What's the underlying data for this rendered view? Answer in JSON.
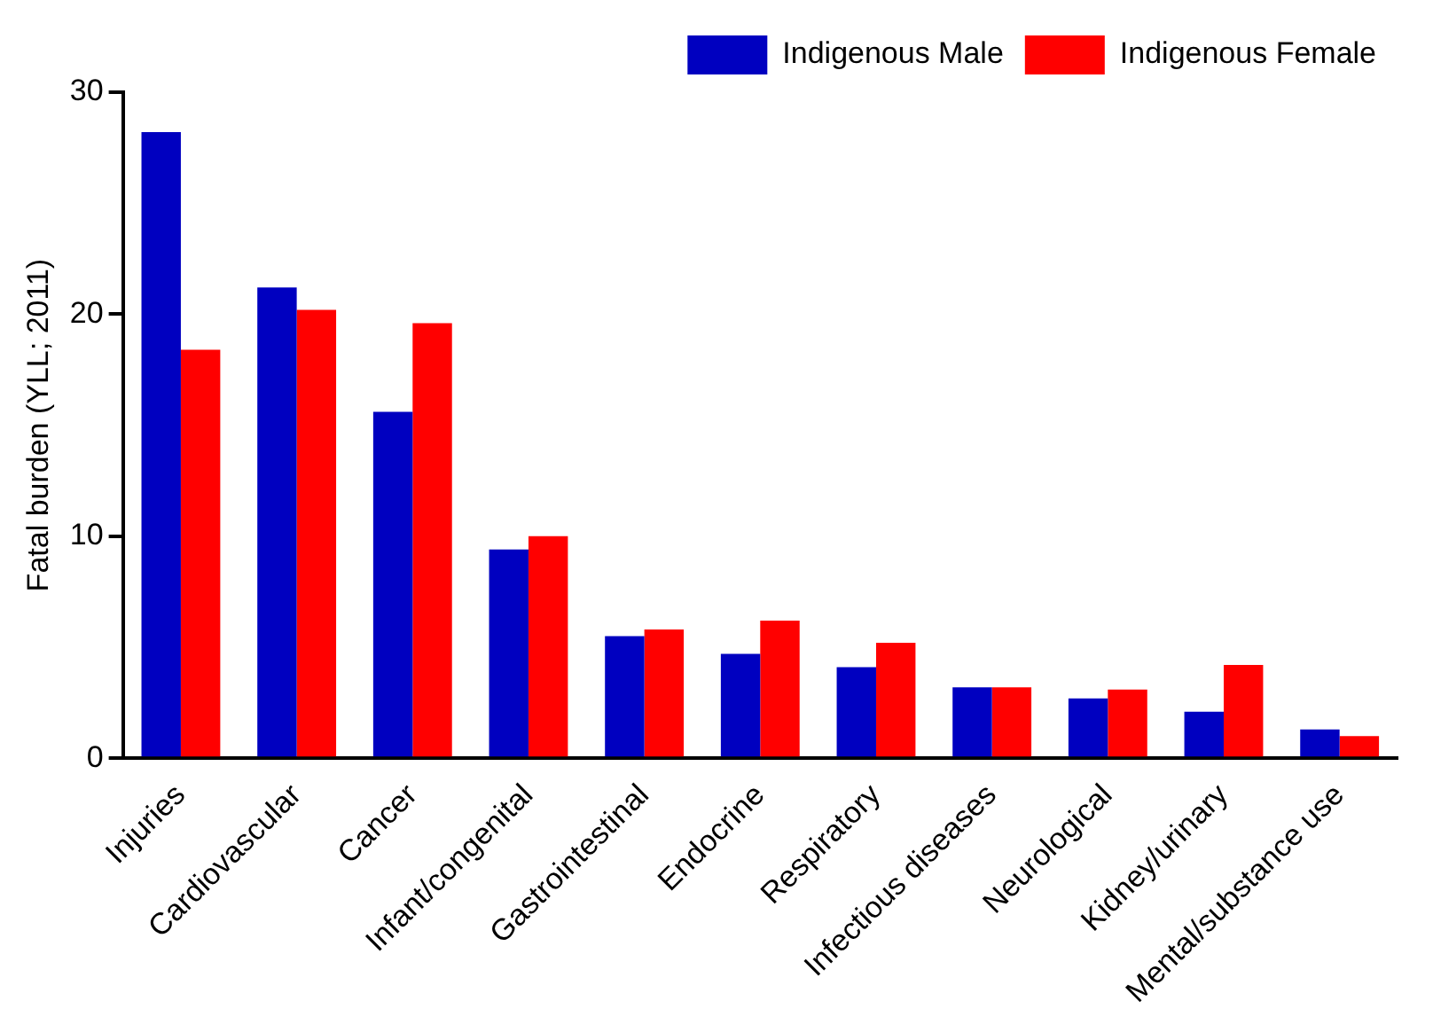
{
  "chart_data": {
    "type": "bar",
    "categories": [
      "Injuries",
      "Cardiovascular",
      "Cancer",
      "Infant/congenital",
      "Gastrointestinal",
      "Endocrine",
      "Respiratory",
      "Infectious diseases",
      "Neurological",
      "Kidney/urinary",
      "Mental/substance use"
    ],
    "series": [
      {
        "name": "Indigenous Male",
        "color": "#0000c0",
        "values": [
          28.2,
          21.2,
          15.6,
          9.4,
          5.5,
          4.7,
          4.1,
          3.2,
          2.7,
          2.1,
          1.3
        ]
      },
      {
        "name": "Indigenous Female",
        "color": "#ff0000",
        "values": [
          18.4,
          20.2,
          19.6,
          10.0,
          5.8,
          6.2,
          5.2,
          3.2,
          3.1,
          4.2,
          1.0
        ]
      }
    ],
    "ylabel": "Fatal burden (YLL; 2011)",
    "ylim": [
      0,
      30
    ],
    "yticks": [
      0,
      10,
      20,
      30
    ],
    "grid": false,
    "legend": "top right"
  }
}
